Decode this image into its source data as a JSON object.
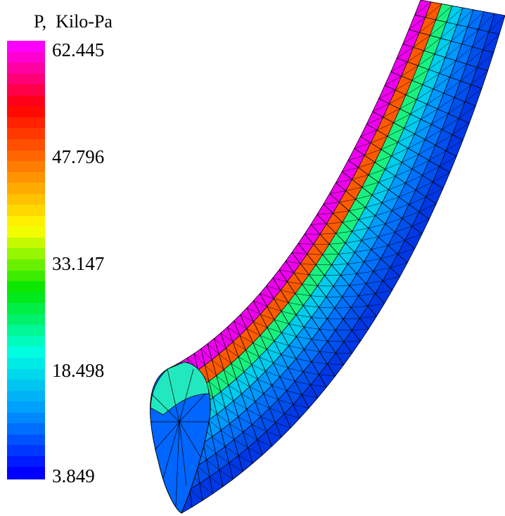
{
  "legend": {
    "title": "P,  Kilo-Pa",
    "tick_labels": [
      "62.445",
      "47.796",
      "33.147",
      "18.498",
      "3.849"
    ],
    "colors": [
      "#ff00ff",
      "#ff0000",
      "#ff8000",
      "#ffff00",
      "#00e600",
      "#00ffe0",
      "#0099ff",
      "#0000ff"
    ]
  },
  "pipe": {
    "stripe_colors": [
      "#ee00ee",
      "#ff5a00",
      "#18f080",
      "#00ccee",
      "#0099ff",
      "#0070ff",
      "#0050ee",
      "#0038e6"
    ],
    "mesh_color": "#000000",
    "background": "#ffffff"
  }
}
